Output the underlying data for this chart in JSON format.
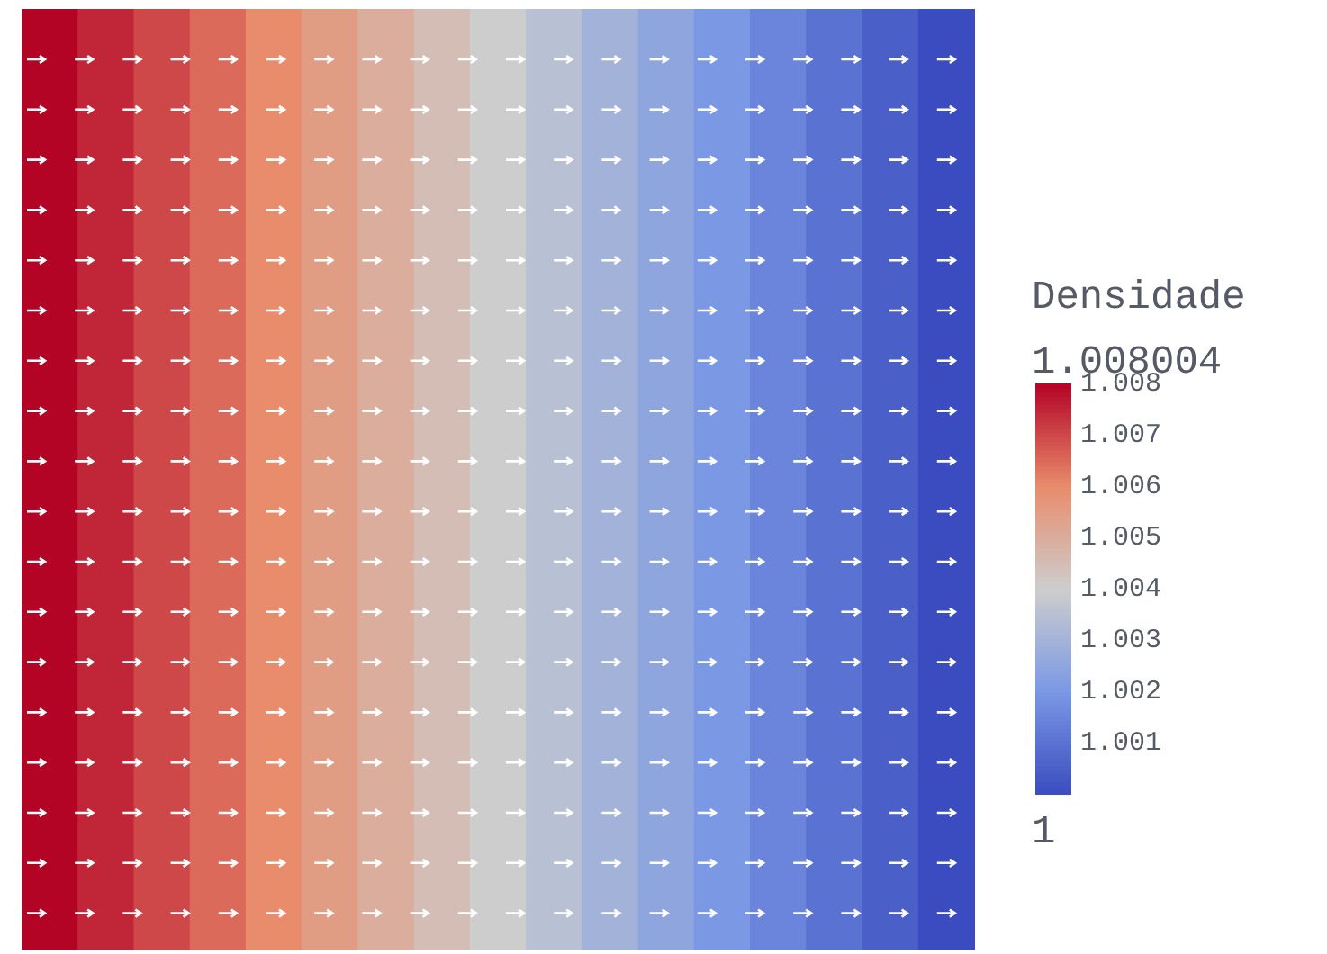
{
  "chart_data": {
    "type": "heatmap",
    "clabel": "Densidade",
    "categories": [
      null,
      null,
      null,
      null,
      null,
      null,
      null,
      null,
      null,
      null,
      null,
      null,
      null,
      null,
      null,
      null,
      null
    ],
    "y_categories": [
      null
    ],
    "cells": [
      [
        1.008,
        1.0075,
        1.007,
        1.0065,
        1.006,
        1.0055,
        1.005,
        1.0045,
        1.004,
        1.0035,
        1.003,
        1.0025,
        1.002,
        1.0015,
        1.001,
        1.0005,
        1.0
      ]
    ],
    "clim": [
      1,
      1.008004
    ],
    "cticks": [
      1.001,
      1.002,
      1.003,
      1.004,
      1.005,
      1.006,
      1.007,
      1.008
    ],
    "annotations": [
      "1.008004",
      "1"
    ]
  }
}
